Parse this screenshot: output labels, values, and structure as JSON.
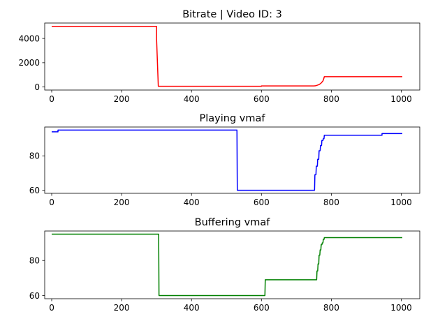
{
  "chart_data": [
    {
      "type": "line",
      "title": "Bitrate | Video ID: 3",
      "xlabel": "",
      "ylabel": "",
      "xlim": [
        -20,
        1053
      ],
      "ylim": [
        -250,
        5270
      ],
      "xticks": [
        0,
        200,
        400,
        600,
        800,
        1000
      ],
      "yticks": [
        0,
        2000,
        4000
      ],
      "grid": false,
      "series": [
        {
          "color": "#ff0000",
          "x": [
            0,
            300,
            300,
            305,
            600,
            600,
            750,
            755,
            760,
            765,
            770,
            773,
            776,
            778,
            780,
            1003
          ],
          "y": [
            5000,
            5000,
            4000,
            60,
            60,
            90,
            90,
            100,
            150,
            200,
            300,
            400,
            500,
            650,
            850,
            850
          ]
        }
      ]
    },
    {
      "type": "line",
      "title": "Playing vmaf",
      "xlabel": "",
      "ylabel": "",
      "xlim": [
        -20,
        1053
      ],
      "ylim": [
        58.2,
        96.8
      ],
      "xticks": [
        0,
        200,
        400,
        600,
        800,
        1000
      ],
      "yticks": [
        60,
        80
      ],
      "grid": false,
      "series": [
        {
          "color": "#0000ff",
          "x": [
            0,
            18,
            18,
            530,
            531,
            752,
            753,
            756,
            757,
            760,
            761,
            764,
            765,
            768,
            769,
            772,
            773,
            776,
            777,
            779,
            780,
            945,
            945,
            1003
          ],
          "y": [
            94,
            94,
            95,
            95,
            60,
            60,
            69,
            69,
            74,
            74,
            78,
            78,
            83,
            83,
            86,
            86,
            89,
            89,
            90,
            90,
            92,
            92,
            93,
            93
          ]
        }
      ]
    },
    {
      "type": "line",
      "title": "Buffering vmaf",
      "xlabel": "",
      "ylabel": "",
      "xlim": [
        -20,
        1053
      ],
      "ylim": [
        58.2,
        96.8
      ],
      "xticks": [
        0,
        200,
        400,
        600,
        800,
        1000
      ],
      "yticks": [
        60,
        80
      ],
      "grid": false,
      "series": [
        {
          "color": "#008000",
          "x": [
            0,
            306,
            307,
            610,
            611,
            758,
            759,
            761,
            762,
            764,
            765,
            767,
            768,
            770,
            771,
            773,
            774,
            776,
            777,
            779,
            780,
            1003
          ],
          "y": [
            95,
            95,
            60,
            60,
            69,
            69,
            74,
            74,
            78,
            78,
            83,
            83,
            86,
            86,
            89,
            89,
            90,
            90,
            92,
            92,
            93,
            93
          ]
        }
      ]
    }
  ]
}
